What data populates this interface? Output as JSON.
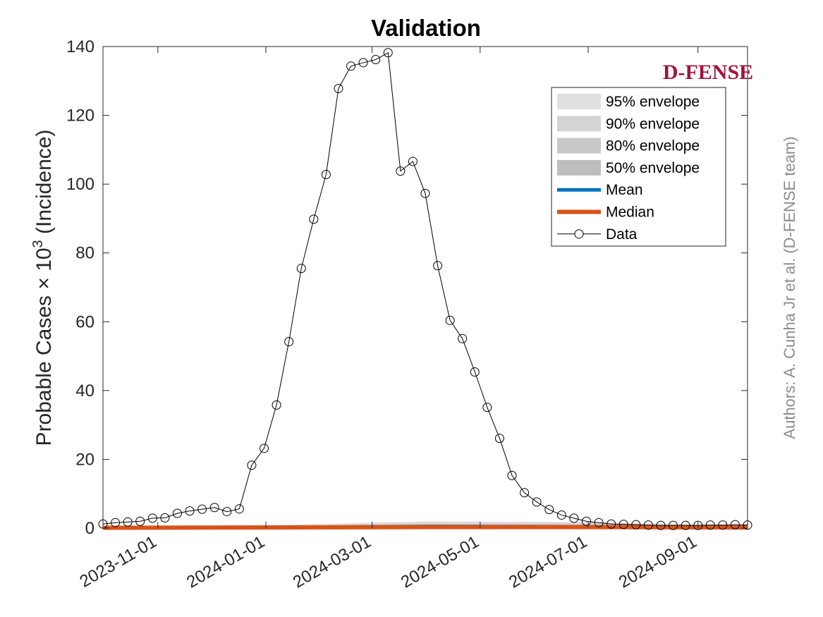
{
  "chart_data": {
    "type": "line",
    "title": "Validation",
    "ylabel": "Probable Cases × 10³ (Incidence)",
    "ylabel_main": "Probable Cases × 10",
    "ylabel_exp": "3",
    "ylabel_tail": " (Incidence)",
    "xlabel": "",
    "ylim": [
      0,
      140
    ],
    "yticks": [
      0,
      20,
      40,
      60,
      80,
      100,
      120,
      140
    ],
    "xlim": [
      "2023-10-01",
      "2024-09-29"
    ],
    "xticks": [
      "2023-11-01",
      "2024-01-01",
      "2024-03-01",
      "2024-05-01",
      "2024-07-01",
      "2024-09-01"
    ],
    "grid": false,
    "legend_position": "top-right",
    "logo_text": "D-FENSE",
    "credit": "Authors: A. Cunha Jr et al. (D-FENSE team)",
    "legend": [
      {
        "label": "95% envelope",
        "kind": "patch",
        "color": "#e0e0e0"
      },
      {
        "label": "90% envelope",
        "kind": "patch",
        "color": "#d4d4d4"
      },
      {
        "label": "80% envelope",
        "kind": "patch",
        "color": "#c8c8c8"
      },
      {
        "label": "50% envelope",
        "kind": "patch",
        "color": "#bdbdbd"
      },
      {
        "label": "Mean",
        "kind": "line",
        "color": "#0072bd"
      },
      {
        "label": "Median",
        "kind": "line",
        "color": "#d95319"
      },
      {
        "label": "Data",
        "kind": "marker",
        "color": "#000000"
      }
    ],
    "series": [
      {
        "name": "Data",
        "color": "#000000",
        "x": [
          "2023-10-01",
          "2023-10-08",
          "2023-10-15",
          "2023-10-22",
          "2023-10-29",
          "2023-11-05",
          "2023-11-12",
          "2023-11-19",
          "2023-11-26",
          "2023-12-03",
          "2023-12-10",
          "2023-12-17",
          "2023-12-24",
          "2023-12-31",
          "2024-01-07",
          "2024-01-14",
          "2024-01-21",
          "2024-01-28",
          "2024-02-04",
          "2024-02-11",
          "2024-02-18",
          "2024-02-25",
          "2024-03-03",
          "2024-03-10",
          "2024-03-17",
          "2024-03-24",
          "2024-03-31",
          "2024-04-07",
          "2024-04-14",
          "2024-04-21",
          "2024-04-28",
          "2024-05-05",
          "2024-05-12",
          "2024-05-19",
          "2024-05-26",
          "2024-06-02",
          "2024-06-09",
          "2024-06-16",
          "2024-06-23",
          "2024-06-30",
          "2024-07-07",
          "2024-07-14",
          "2024-07-21",
          "2024-07-28",
          "2024-08-04",
          "2024-08-11",
          "2024-08-18",
          "2024-08-25",
          "2024-09-01",
          "2024-09-08",
          "2024-09-15",
          "2024-09-22",
          "2024-09-29"
        ],
        "values": [
          1.2,
          1.6,
          1.8,
          2.0,
          2.9,
          3.0,
          4.3,
          5.0,
          5.5,
          6.0,
          4.8,
          5.6,
          18.3,
          23.2,
          35.8,
          54.2,
          75.5,
          89.8,
          102.8,
          127.8,
          134.3,
          135.3,
          136.2,
          138.2,
          103.8,
          106.6,
          97.3,
          76.3,
          60.4,
          55.1,
          45.4,
          35.1,
          26.1,
          15.3,
          10.3,
          7.6,
          5.4,
          3.8,
          2.9,
          2.0,
          1.6,
          1.2,
          1.1,
          1.0,
          0.9,
          0.8,
          0.8,
          0.8,
          0.8,
          0.9,
          0.9,
          1.0,
          0.9
        ]
      },
      {
        "name": "Mean",
        "color": "#0072bd",
        "x": [
          "2023-10-01",
          "2024-01-01",
          "2024-04-01",
          "2024-07-01",
          "2024-09-29"
        ],
        "values": [
          0.2,
          0.3,
          0.6,
          0.5,
          0.3
        ]
      },
      {
        "name": "Median",
        "color": "#d95319",
        "x": [
          "2023-10-01",
          "2024-01-01",
          "2024-04-01",
          "2024-07-01",
          "2024-09-29"
        ],
        "values": [
          0.1,
          0.2,
          0.3,
          0.3,
          0.2
        ]
      }
    ],
    "envelopes": [
      {
        "name": "95% envelope",
        "color": "#e0e0e0",
        "x": [
          "2023-10-01",
          "2024-01-01",
          "2024-04-01",
          "2024-07-01",
          "2024-09-29"
        ],
        "upper": [
          0.3,
          0.8,
          2.0,
          1.8,
          0.8
        ],
        "lower": [
          0,
          0,
          0,
          0,
          0
        ]
      },
      {
        "name": "90% envelope",
        "color": "#d4d4d4",
        "x": [
          "2023-10-01",
          "2024-01-01",
          "2024-04-01",
          "2024-07-01",
          "2024-09-29"
        ],
        "upper": [
          0.3,
          0.6,
          1.6,
          1.4,
          0.6
        ],
        "lower": [
          0,
          0,
          0,
          0,
          0
        ]
      },
      {
        "name": "80% envelope",
        "color": "#c8c8c8",
        "x": [
          "2023-10-01",
          "2024-01-01",
          "2024-04-01",
          "2024-07-01",
          "2024-09-29"
        ],
        "upper": [
          0.2,
          0.5,
          1.2,
          1.1,
          0.5
        ],
        "lower": [
          0,
          0,
          0,
          0,
          0
        ]
      },
      {
        "name": "50% envelope",
        "color": "#bdbdbd",
        "x": [
          "2023-10-01",
          "2024-01-01",
          "2024-04-01",
          "2024-07-01",
          "2024-09-29"
        ],
        "upper": [
          0.2,
          0.4,
          0.8,
          0.7,
          0.4
        ],
        "lower": [
          0,
          0,
          0,
          0,
          0.05
        ]
      }
    ]
  }
}
